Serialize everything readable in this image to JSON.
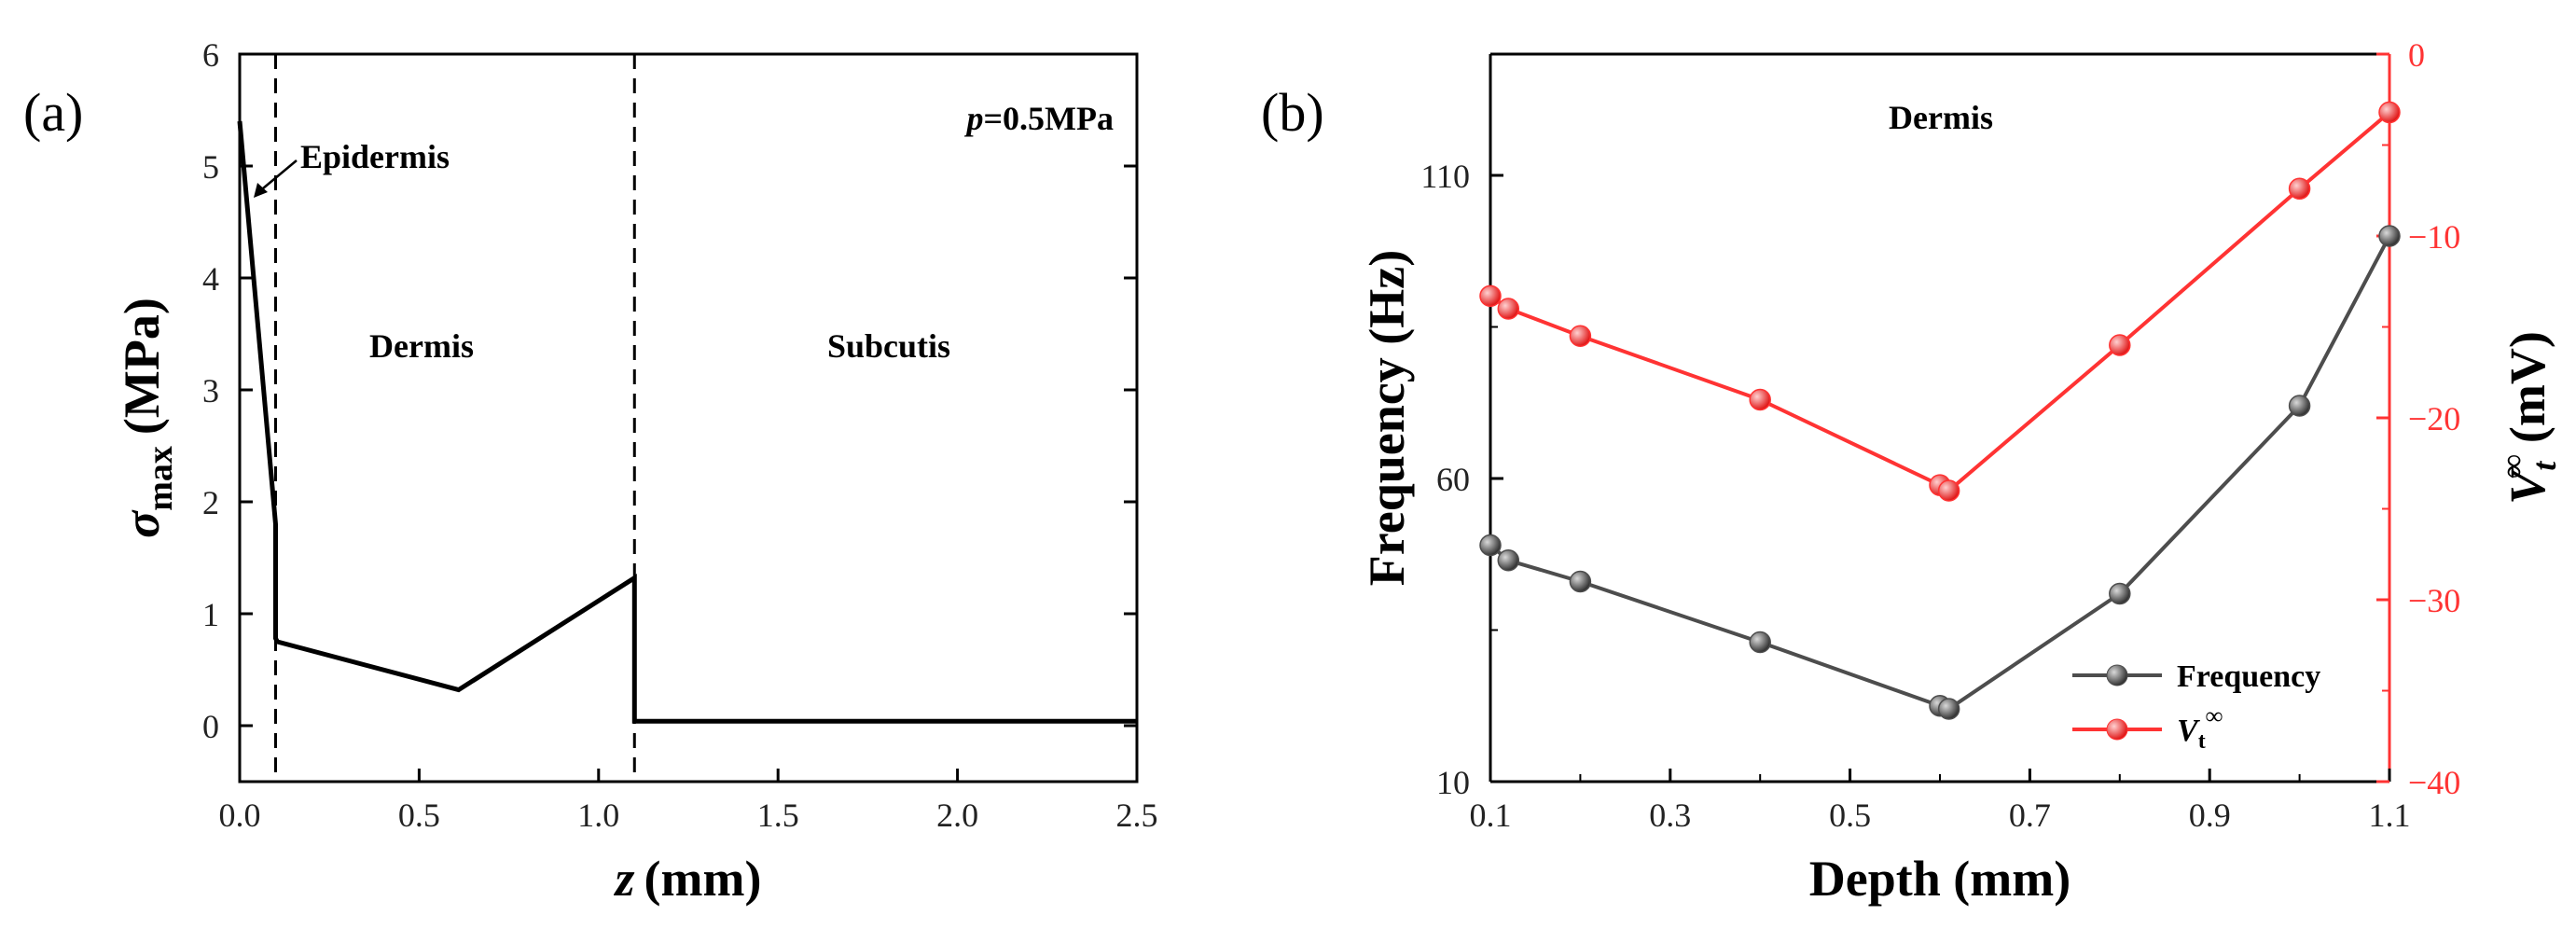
{
  "chart_data": [
    {
      "panel": "(a)",
      "type": "line",
      "xlabel": {
        "symbol": "z",
        "unit": "(mm)"
      },
      "ylabel": {
        "symbol": "σ",
        "subscript": "max",
        "unit": "(MPa)"
      },
      "xlim": [
        0,
        2.5
      ],
      "ylim": [
        -0.5,
        6
      ],
      "xticks": [
        "0.0",
        "0.5",
        "1.0",
        "1.5",
        "2.0",
        "2.5"
      ],
      "yticks": [
        "0",
        "1",
        "2",
        "3",
        "4",
        "5",
        "6"
      ],
      "grid": false,
      "series": [
        {
          "x": [
            0.0,
            0.1,
            0.1,
            0.105,
            0.61,
            1.1,
            1.1,
            2.5
          ],
          "y": [
            5.4,
            1.8,
            0.78,
            0.75,
            0.32,
            1.32,
            0.04,
            0.04
          ]
        }
      ],
      "vlines": [
        0.1,
        1.1
      ],
      "annotations": {
        "epidermis": "Epidermis",
        "dermis": "Dermis",
        "subcutis": "Subcutis",
        "pressure_symbol": "p",
        "pressure_value": "=0.5MPa"
      }
    },
    {
      "panel": "(b)",
      "type": "line",
      "xlabel": "Depth (mm)",
      "ylabel_left": "Frequency (Hz)",
      "ylabel_right": {
        "symbol": "V",
        "subscript": "t",
        "superscript": "∞",
        "unit": "(mV)"
      },
      "xlim": [
        0.1,
        1.1
      ],
      "ylim_left": [
        10,
        130
      ],
      "ylim_right": [
        -40,
        0
      ],
      "xticks": [
        "0.1",
        "0.3",
        "0.5",
        "0.7",
        "0.9",
        "1.1"
      ],
      "yticks_left": [
        "10",
        "60",
        "110"
      ],
      "yticks_right": [
        "−40",
        "−30",
        "−20",
        "−10",
        "0"
      ],
      "grid": false,
      "annotation": "Dermis",
      "legend_position": "bottom-right",
      "series": [
        {
          "name": "Frequency",
          "axis": "left",
          "color": "#4d4d4d",
          "x": [
            0.1,
            0.12,
            0.2,
            0.4,
            0.6,
            0.61,
            0.8,
            1.0,
            1.1
          ],
          "y": [
            49,
            46.5,
            43,
            33,
            22.5,
            22,
            41,
            72,
            100
          ]
        },
        {
          "name": "V",
          "name_subscript": "t",
          "name_superscript": "∞",
          "axis": "right",
          "color": "#ff3333",
          "x": [
            0.1,
            0.12,
            0.2,
            0.4,
            0.6,
            0.61,
            0.8,
            1.0,
            1.1
          ],
          "y": [
            -13.3,
            -14.0,
            -15.5,
            -19.0,
            -23.7,
            -24.0,
            -16.0,
            -7.4,
            -3.2
          ]
        }
      ]
    }
  ]
}
